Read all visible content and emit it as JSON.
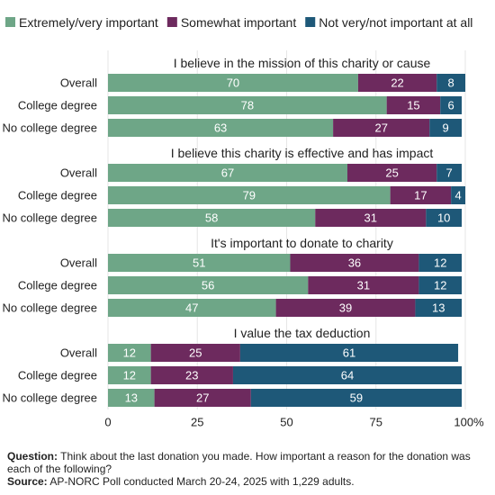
{
  "chart_data": {
    "type": "bar",
    "orientation": "horizontal",
    "stacked": true,
    "legend_position": "top",
    "legend": [
      {
        "name": "Extremely/very important",
        "color": "#6ea687"
      },
      {
        "name": "Somewhat important",
        "color": "#6d2a5e"
      },
      {
        "name": "Not very/not important at all",
        "color": "#1e5878"
      }
    ],
    "x_ticks": [
      "0",
      "25",
      "50",
      "75",
      "100%"
    ],
    "xlim": [
      0,
      100
    ],
    "grid": true,
    "groups": [
      {
        "title": "I believe in the mission of this charity or cause",
        "rows": [
          {
            "label": "Overall",
            "values": [
              70,
              22,
              8
            ]
          },
          {
            "label": "College degree",
            "values": [
              78,
              15,
              6
            ]
          },
          {
            "label": "No college degree",
            "values": [
              63,
              27,
              9
            ]
          }
        ]
      },
      {
        "title": "I believe this charity is effective and has impact",
        "rows": [
          {
            "label": "Overall",
            "values": [
              67,
              25,
              7
            ]
          },
          {
            "label": "College degree",
            "values": [
              79,
              17,
              4
            ]
          },
          {
            "label": "No college degree",
            "values": [
              58,
              31,
              10
            ]
          }
        ]
      },
      {
        "title": "It's important to donate to charity",
        "rows": [
          {
            "label": "Overall",
            "values": [
              51,
              36,
              12
            ]
          },
          {
            "label": "College degree",
            "values": [
              56,
              31,
              12
            ]
          },
          {
            "label": "No college degree",
            "values": [
              47,
              39,
              13
            ]
          }
        ]
      },
      {
        "title": "I value the tax deduction",
        "rows": [
          {
            "label": "Overall",
            "values": [
              12,
              25,
              61
            ]
          },
          {
            "label": "College degree",
            "values": [
              12,
              23,
              64
            ]
          },
          {
            "label": "No college degree",
            "values": [
              13,
              27,
              59
            ]
          }
        ]
      }
    ]
  },
  "footer": {
    "question_label": "Question:",
    "question_text": "Think about the last donation you made. How important a reason for the donation was each of the following?",
    "source_label": "Source:",
    "source_text": "AP-NORC Poll conducted March 20-24, 2025 with 1,229 adults."
  }
}
